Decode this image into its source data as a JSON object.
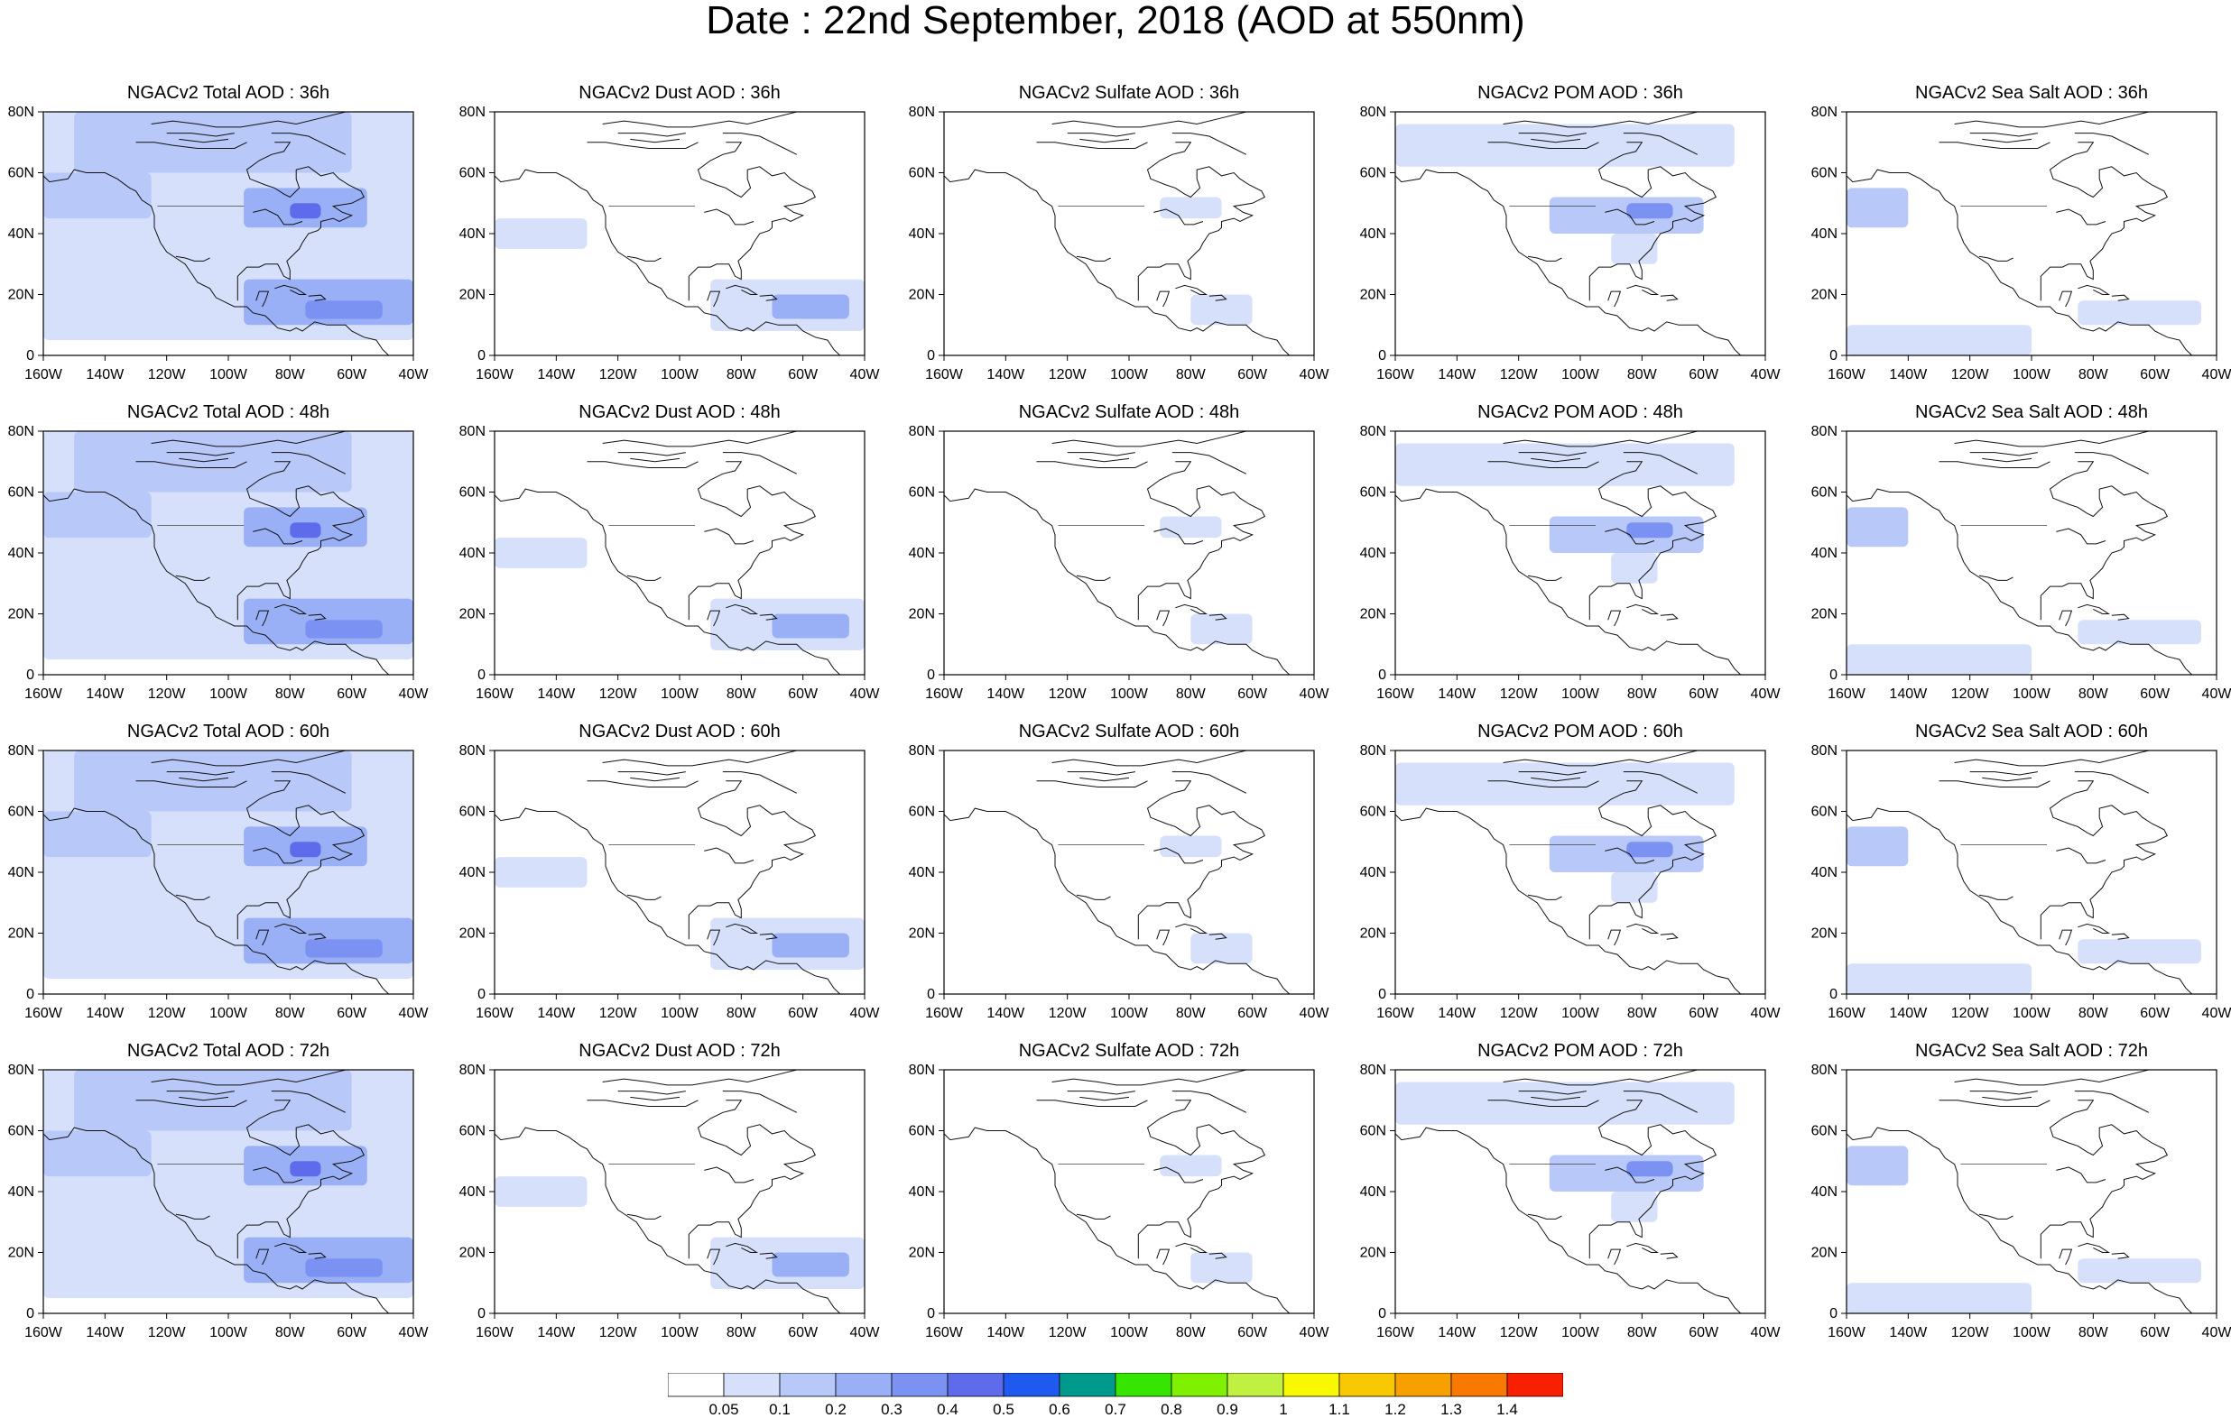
{
  "title": "Date : 22nd September, 2018 (AOD at 550nm)",
  "rows": [
    {
      "lead": "36h",
      "titles": [
        "NGACv2 Total AOD : 36h",
        "NGACv2 Dust AOD : 36h",
        "NGACv2 Sulfate AOD : 36h",
        "NGACv2 POM AOD : 36h",
        "NGACv2 Sea Salt AOD : 36h"
      ]
    },
    {
      "lead": "48h",
      "titles": [
        "NGACv2 Total AOD : 48h",
        "NGACv2 Dust AOD : 48h",
        "NGACv2 Sulfate AOD : 48h",
        "NGACv2 POM AOD : 48h",
        "NGACv2 Sea Salt AOD : 48h"
      ]
    },
    {
      "lead": "60h",
      "titles": [
        "NGACv2 Total AOD : 60h",
        "NGACv2 Dust AOD : 60h",
        "NGACv2 Sulfate AOD : 60h",
        "NGACv2 POM AOD : 60h",
        "NGACv2 Sea Salt AOD : 60h"
      ]
    },
    {
      "lead": "72h",
      "titles": [
        "NGACv2 Total AOD : 72h",
        "NGACv2 Dust AOD : 72h",
        "NGACv2 Sulfate AOD : 72h",
        "NGACv2 POM AOD : 72h",
        "NGACv2 Sea Salt  AOD : 72h"
      ]
    }
  ],
  "chart_data": {
    "type": "heatmap",
    "x_ticks": [
      "160W",
      "140W",
      "120W",
      "100W",
      "80W",
      "60W",
      "40W"
    ],
    "y_ticks": [
      "0",
      "20N",
      "40N",
      "60N",
      "80N"
    ],
    "xlim": [
      -160,
      -40
    ],
    "ylim": [
      0,
      80
    ],
    "colorbar": {
      "labels": [
        "0.05",
        "0.1",
        "0.2",
        "0.3",
        "0.4",
        "0.5",
        "0.6",
        "0.7",
        "0.8",
        "0.9",
        "1",
        "1.1",
        "1.2",
        "1.3",
        "1.4"
      ],
      "colors": [
        "#ffffff",
        "#d6e0fb",
        "#b8c8f8",
        "#9ab0f6",
        "#7c92f2",
        "#5e6cec",
        "#1e5af0",
        "#009a8c",
        "#36e600",
        "#7ef000",
        "#c0f040",
        "#f8f800",
        "#f8c800",
        "#f8a000",
        "#f87800",
        "#f82000"
      ]
    },
    "species": [
      "Total",
      "Dust",
      "Sulfate",
      "POM",
      "Sea Salt"
    ],
    "leads": [
      "36h",
      "48h",
      "60h",
      "72h"
    ],
    "plumes": {
      "Total": [
        {
          "lat": [
            5,
            80
          ],
          "lon": [
            -160,
            -40
          ],
          "level": 1,
          "note": "domain-wide background"
        },
        {
          "lat": [
            10,
            25
          ],
          "lon": [
            -95,
            -40
          ],
          "level": 3
        },
        {
          "lat": [
            12,
            18
          ],
          "lon": [
            -75,
            -50
          ],
          "level": 4
        },
        {
          "lat": [
            42,
            55
          ],
          "lon": [
            -95,
            -55
          ],
          "level": 3
        },
        {
          "lat": [
            45,
            50
          ],
          "lon": [
            -80,
            -70
          ],
          "level": 5
        },
        {
          "lat": [
            60,
            80
          ],
          "lon": [
            -150,
            -60
          ],
          "level": 2
        },
        {
          "lat": [
            45,
            60
          ],
          "lon": [
            -160,
            -125
          ],
          "level": 2
        }
      ],
      "Dust": [
        {
          "lat": [
            8,
            25
          ],
          "lon": [
            -90,
            -40
          ],
          "level": 1
        },
        {
          "lat": [
            12,
            20
          ],
          "lon": [
            -70,
            -45
          ],
          "level": 3
        },
        {
          "lat": [
            35,
            45
          ],
          "lon": [
            -160,
            -130
          ],
          "level": 1
        }
      ],
      "Sulfate": [
        {
          "lat": [
            45,
            52
          ],
          "lon": [
            -90,
            -70
          ],
          "level": 1
        },
        {
          "lat": [
            10,
            20
          ],
          "lon": [
            -80,
            -60
          ],
          "level": 1
        }
      ],
      "POM": [
        {
          "lat": [
            62,
            76
          ],
          "lon": [
            -160,
            -50
          ],
          "level": 1
        },
        {
          "lat": [
            40,
            52
          ],
          "lon": [
            -110,
            -60
          ],
          "level": 2
        },
        {
          "lat": [
            45,
            50
          ],
          "lon": [
            -85,
            -70
          ],
          "level": 4
        },
        {
          "lat": [
            30,
            40
          ],
          "lon": [
            -90,
            -75
          ],
          "level": 1
        }
      ],
      "Sea Salt": [
        {
          "lat": [
            42,
            55
          ],
          "lon": [
            -160,
            -140
          ],
          "level": 2
        },
        {
          "lat": [
            10,
            18
          ],
          "lon": [
            -85,
            -45
          ],
          "level": 1
        },
        {
          "lat": [
            0,
            10
          ],
          "lon": [
            -160,
            -100
          ],
          "level": 1
        }
      ]
    }
  }
}
